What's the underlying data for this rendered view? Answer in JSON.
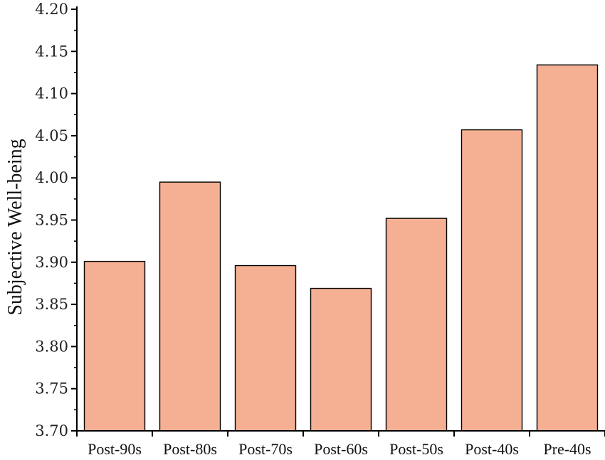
{
  "chart_data": {
    "type": "bar",
    "categories": [
      "Post-90s",
      "Post-80s",
      "Post-70s",
      "Post-60s",
      "Post-50s",
      "Post-40s",
      "Pre-40s"
    ],
    "values": [
      3.901,
      3.995,
      3.896,
      3.869,
      3.952,
      4.057,
      4.134
    ],
    "xlabel": "",
    "ylabel": "Subjective Well-being",
    "ylim": [
      3.7,
      4.2
    ],
    "yticks": [
      "3.70",
      "3.75",
      "3.80",
      "3.85",
      "3.90",
      "3.95",
      "4.00",
      "4.05",
      "4.10",
      "4.15",
      "4.20"
    ],
    "grid": false,
    "legend": "none",
    "colors": {
      "bar_fill": "#f5b093",
      "bar_stroke": "#000000",
      "axis": "#000000"
    }
  }
}
